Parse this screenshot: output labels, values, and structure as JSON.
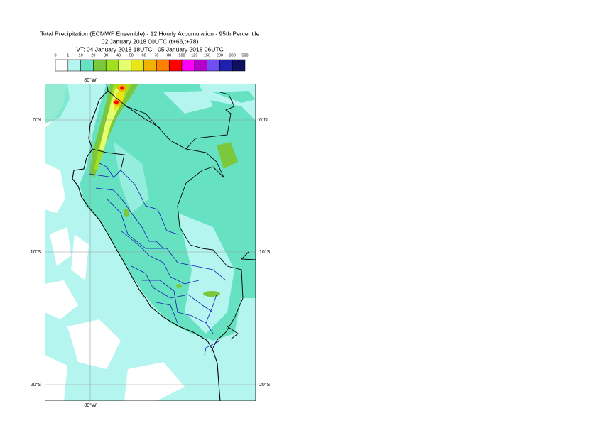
{
  "header": {
    "title": "Total Precipitation (ECMWF Ensemble) - 12 Hourly Accumulation - 95th Percentile",
    "base_time": "02 January 2018 00UTC (t+66,t+78)",
    "valid_time": "VT: 04 January 2018 18UTC - 05 January 2018 06UTC"
  },
  "legend": {
    "labels": [
      0,
      1,
      10,
      20,
      30,
      40,
      50,
      60,
      70,
      80,
      100,
      125,
      150,
      200,
      300,
      500
    ],
    "colors": [
      "#ffffff",
      "#b4f5f0",
      "#66e2c2",
      "#7cc83c",
      "#a0e020",
      "#e6ff6e",
      "#e6e619",
      "#f0b400",
      "#ff8000",
      "#ff0000",
      "#ff00ff",
      "#b400c8",
      "#7050f0",
      "#2020b0",
      "#101060"
    ]
  },
  "map": {
    "lon_label": "80°W",
    "lat_labels": [
      "0°N",
      "10°S",
      "20°S"
    ]
  }
}
